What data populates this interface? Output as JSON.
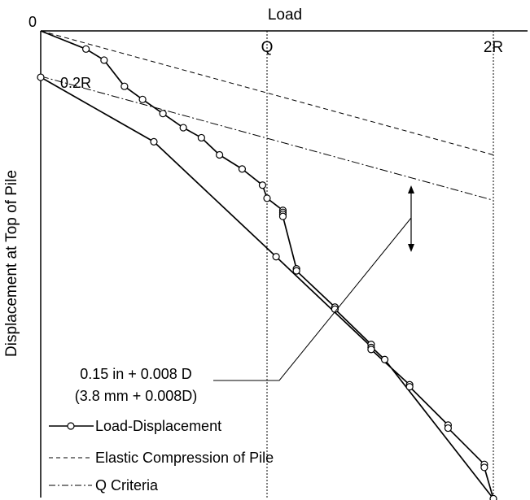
{
  "chart_data": {
    "type": "line",
    "xlabel": "Load",
    "ylabel": "Displacement at Top of Pile",
    "origin_label": "0",
    "x_markers": [
      {
        "label": "Q",
        "x": 1.0
      },
      {
        "label": "2R",
        "x": 2.0
      }
    ],
    "annotations": {
      "point_label": {
        "text": "0.2R",
        "x": 0.2,
        "y": 0.18
      },
      "offset_label_line1": "0.15 in + 0.008 D",
      "offset_label_line2": "(3.8 mm + 0.008D)"
    },
    "series": [
      {
        "name": "Load-Displacement",
        "style": "solid-circles",
        "points": [
          {
            "x": 0.0,
            "y": 0.0
          },
          {
            "x": 0.2,
            "y": 0.18
          },
          {
            "x": 0.28,
            "y": 0.29
          },
          {
            "x": 0.37,
            "y": 0.55
          },
          {
            "x": 0.45,
            "y": 0.68
          },
          {
            "x": 0.54,
            "y": 0.82
          },
          {
            "x": 0.63,
            "y": 0.96
          },
          {
            "x": 0.71,
            "y": 1.06
          },
          {
            "x": 0.79,
            "y": 1.23
          },
          {
            "x": 0.89,
            "y": 1.37
          },
          {
            "x": 0.98,
            "y": 1.53
          },
          {
            "x": 1.0,
            "y": 1.66
          },
          {
            "x": 1.07,
            "y": 1.78
          },
          {
            "x": 1.07,
            "y": 1.8
          },
          {
            "x": 1.07,
            "y": 1.82
          },
          {
            "x": 1.07,
            "y": 1.84
          },
          {
            "x": 1.13,
            "y": 2.36
          },
          {
            "x": 1.13,
            "y": 2.38
          },
          {
            "x": 1.3,
            "y": 2.74
          },
          {
            "x": 1.3,
            "y": 2.76
          },
          {
            "x": 1.46,
            "y": 3.11
          },
          {
            "x": 1.46,
            "y": 3.14
          },
          {
            "x": 1.46,
            "y": 3.16
          },
          {
            "x": 1.63,
            "y": 3.51
          },
          {
            "x": 1.63,
            "y": 3.53
          },
          {
            "x": 1.8,
            "y": 3.91
          },
          {
            "x": 1.8,
            "y": 3.94
          },
          {
            "x": 1.96,
            "y": 4.3
          },
          {
            "x": 1.96,
            "y": 4.33
          },
          {
            "x": 2.0,
            "y": 4.64
          },
          {
            "x": 1.52,
            "y": 3.26
          },
          {
            "x": 1.04,
            "y": 2.24
          },
          {
            "x": 0.5,
            "y": 1.1
          },
          {
            "x": 0.0,
            "y": 0.46
          }
        ]
      },
      {
        "name": "Elastic Compression of Pile",
        "style": "dashed",
        "points": [
          {
            "x": 0.0,
            "y": 0.0
          },
          {
            "x": 2.0,
            "y": 1.23
          }
        ]
      },
      {
        "name": "Q Criteria",
        "style": "dashdot",
        "points": [
          {
            "x": 0.0,
            "y": 0.45
          },
          {
            "x": 2.0,
            "y": 1.68
          }
        ]
      }
    ],
    "legend": {
      "position": "bottom-left",
      "entries": [
        "Load-Displacement",
        "Elastic Compression of Pile",
        "Q Criteria"
      ]
    },
    "grid": false
  }
}
